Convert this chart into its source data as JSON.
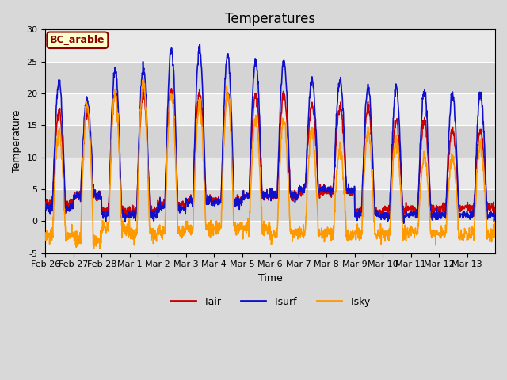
{
  "title": "Temperatures",
  "xlabel": "Time",
  "ylabel": "Temperature",
  "legend_label": "BC_arable",
  "series_labels": [
    "Tair",
    "Tsurf",
    "Tsky"
  ],
  "series_colors": [
    "#cc0000",
    "#1010cc",
    "#ff9900"
  ],
  "ylim": [
    -5,
    30
  ],
  "yticks": [
    -5,
    0,
    5,
    10,
    15,
    20,
    25,
    30
  ],
  "xtick_labels": [
    "Feb 26",
    "Feb 27",
    "Feb 28",
    "Mar 1",
    "Mar 2",
    "Mar 3",
    "Mar 4",
    "Mar 5",
    "Mar 6",
    "Mar 7",
    "Mar 8",
    "Mar 9",
    "Mar 10",
    "Mar 11",
    "Mar 12",
    "Mar 13"
  ],
  "bg_color": "#d8d8d8",
  "plot_bg_color": "#e8e8e8",
  "band_light": "#e8e8e8",
  "band_dark": "#d4d4d4",
  "legend_box_color": "#ffffcc",
  "legend_box_edge": "#8b0000",
  "legend_text_color": "#8b0000",
  "n_days": 16,
  "pts_per_day": 96,
  "title_fontsize": 12,
  "axis_label_fontsize": 9,
  "tick_fontsize": 8,
  "line_width": 1.2,
  "band_boundaries": [
    -5,
    0,
    5,
    10,
    15,
    20,
    25,
    30
  ]
}
